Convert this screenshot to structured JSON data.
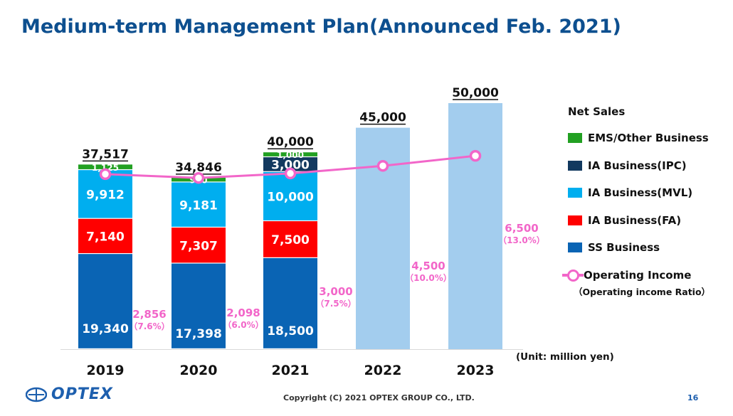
{
  "slide": {
    "title": "Medium-term Management Plan(Announced Feb. 2021)",
    "unit": "(Unit: million yen)",
    "copyright": "Copyright (C) 2021 OPTEX GROUP CO., LTD.",
    "page_number": "16",
    "logo_text": "OPTEX"
  },
  "legend": {
    "heading": "Net Sales",
    "items": [
      {
        "label": "EMS/Other Business",
        "color": "#22a022"
      },
      {
        "label": "IA  Business(IPC)",
        "color": "#12395f"
      },
      {
        "label": "IA  Business(MVL)",
        "color": "#00aeef"
      },
      {
        "label": "IA  Business(FA)",
        "color": "#ff0000"
      },
      {
        "label": "SS Business",
        "color": "#0a64b4"
      }
    ],
    "line_label": "Operating Income",
    "line_sublabel": "（Operating income Ratio）"
  },
  "chart_data": {
    "type": "bar",
    "categories": [
      "2019",
      "2020",
      "2021",
      "2022",
      "2023"
    ],
    "totals": [
      "37,517",
      "34,846",
      "40,000",
      "45,000",
      "50,000"
    ],
    "total_values": [
      37517,
      34846,
      40000,
      45000,
      50000
    ],
    "series": [
      {
        "name": "SS Business",
        "color": "#0a64b4",
        "values": [
          19340,
          17398,
          18500,
          null,
          null
        ],
        "labels": [
          "19,340",
          "17,398",
          "18,500",
          "",
          ""
        ]
      },
      {
        "name": "IA  Business(FA)",
        "color": "#ff0000",
        "values": [
          7140,
          7307,
          7500,
          null,
          null
        ],
        "labels": [
          "7,140",
          "7,307",
          "7,500",
          "",
          ""
        ]
      },
      {
        "name": "IA  Business(MVL)",
        "color": "#00aeef",
        "values": [
          9912,
          9181,
          10000,
          null,
          null
        ],
        "labels": [
          "9,912",
          "9,181",
          "10,000",
          "",
          ""
        ]
      },
      {
        "name": "IA  Business(IPC)",
        "color": "#12395f",
        "values": [
          0,
          0,
          3000,
          null,
          null
        ],
        "labels": [
          "",
          "",
          "3,000",
          "",
          ""
        ]
      },
      {
        "name": "EMS/Other Business",
        "color": "#22a022",
        "values": [
          1125,
          960,
          1000,
          null,
          null
        ],
        "labels": [
          "1,125",
          "960",
          "1,000",
          "",
          ""
        ]
      }
    ],
    "plan_color": "#a3cdee",
    "line": {
      "name": "Operating Income",
      "color": "#f266c9",
      "values": [
        2856,
        2098,
        3000,
        4500,
        6500
      ],
      "labels": [
        "2,856",
        "2,098",
        "3,000",
        "4,500",
        "6,500"
      ],
      "ratios": [
        "（7.6%）",
        "（6.0%）",
        "（7.5%）",
        "（10.0%）",
        "（13.0%）"
      ]
    },
    "ylim": [
      0,
      50000
    ],
    "line_ylim": [
      -32000,
      17000
    ]
  }
}
